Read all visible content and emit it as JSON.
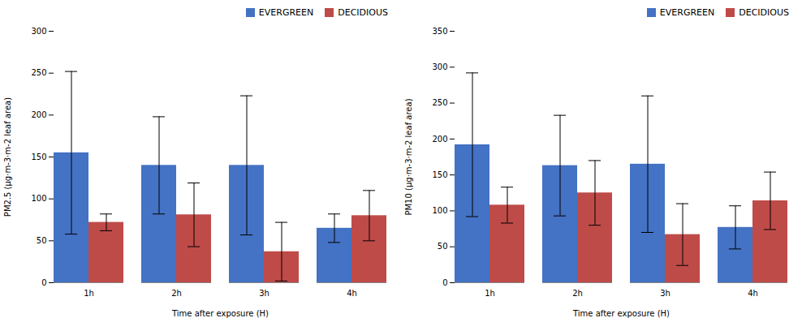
{
  "chart_data": [
    {
      "type": "bar",
      "categories": [
        "1h",
        "2h",
        "3h",
        "4h"
      ],
      "series": [
        {
          "name": "EVERGREEN",
          "color": "#4472C4",
          "values": [
            155,
            140,
            140,
            65
          ],
          "errors": [
            97,
            58,
            83,
            17
          ]
        },
        {
          "name": "DECIDIOUS",
          "color": "#BE4B48",
          "values": [
            72,
            81,
            37,
            80
          ],
          "errors": [
            10,
            38,
            35,
            30
          ]
        }
      ],
      "xlabel": "Time after exposure (H)",
      "ylabel": "PM2.5 (μg·m-3·m-2 leaf area)",
      "ylim": [
        0,
        300
      ],
      "yticks": [
        0,
        50,
        100,
        150,
        200,
        250,
        300
      ],
      "grid": false,
      "legend": "upper right"
    },
    {
      "type": "bar",
      "categories": [
        "1h",
        "2h",
        "3h",
        "4h"
      ],
      "series": [
        {
          "name": "EVERGREEN",
          "color": "#4472C4",
          "values": [
            192,
            163,
            165,
            77
          ],
          "errors": [
            100,
            70,
            95,
            30
          ]
        },
        {
          "name": "DECIDIOUS",
          "color": "#BE4B48",
          "values": [
            108,
            125,
            67,
            114
          ],
          "errors": [
            25,
            45,
            43,
            40
          ]
        }
      ],
      "xlabel": "Time after exposure (H)",
      "ylabel": "PM10 (μg·m-3·m-2 leaf area)",
      "ylim": [
        0,
        350
      ],
      "yticks": [
        0,
        50,
        100,
        150,
        200,
        250,
        300,
        350
      ],
      "grid": false,
      "legend": "upper right"
    }
  ]
}
